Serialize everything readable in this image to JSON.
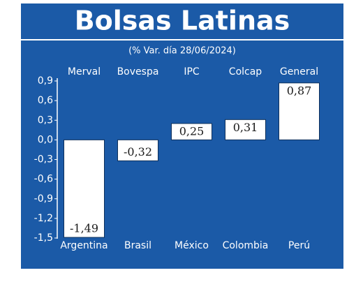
{
  "chart_data": {
    "type": "bar",
    "title": "Bolsas Latinas",
    "subtitle": "(% Var. día 28/06/2024)",
    "categories": [
      "Argentina",
      "Brasil",
      "México",
      "Colombia",
      "Perú"
    ],
    "indices": [
      "Merval",
      "Bovespa",
      "IPC",
      "Colcap",
      "General"
    ],
    "values": [
      -1.49,
      -0.32,
      0.25,
      0.31,
      0.87
    ],
    "value_labels": [
      "-1,49",
      "-0,32",
      "0,25",
      "0,31",
      "0,87"
    ],
    "color": "#ffffff",
    "ylim": [
      -1.5,
      0.9
    ],
    "yticks": [
      {
        "value": 0.9,
        "label": "0,9"
      },
      {
        "value": 0.6,
        "label": "0,6"
      },
      {
        "value": 0.3,
        "label": "0,3"
      },
      {
        "value": 0.0,
        "label": "0,0"
      },
      {
        "value": -0.3,
        "label": "-0,3"
      },
      {
        "value": -0.6,
        "label": "-0,6"
      },
      {
        "value": -0.9,
        "label": "-0,9"
      },
      {
        "value": -1.2,
        "label": "-1,2"
      },
      {
        "value": -1.5,
        "label": "-1,5"
      }
    ]
  }
}
